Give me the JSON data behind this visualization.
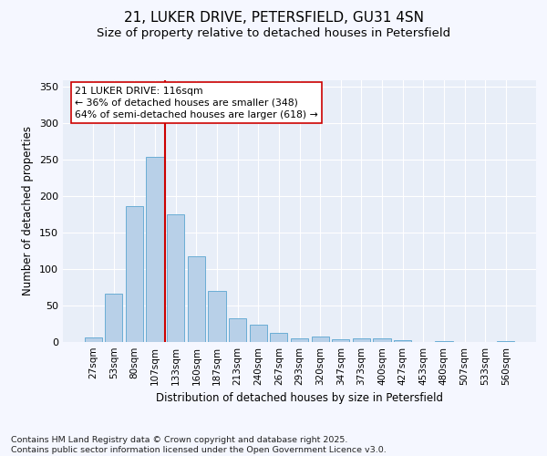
{
  "title_line1": "21, LUKER DRIVE, PETERSFIELD, GU31 4SN",
  "title_line2": "Size of property relative to detached houses in Petersfield",
  "xlabel": "Distribution of detached houses by size in Petersfield",
  "ylabel": "Number of detached properties",
  "categories": [
    "27sqm",
    "53sqm",
    "80sqm",
    "107sqm",
    "133sqm",
    "160sqm",
    "187sqm",
    "213sqm",
    "240sqm",
    "267sqm",
    "293sqm",
    "320sqm",
    "347sqm",
    "373sqm",
    "400sqm",
    "427sqm",
    "453sqm",
    "480sqm",
    "507sqm",
    "533sqm",
    "560sqm"
  ],
  "values": [
    6,
    66,
    186,
    254,
    175,
    118,
    70,
    33,
    24,
    13,
    5,
    8,
    4,
    5,
    5,
    3,
    0,
    1,
    0,
    0,
    1
  ],
  "bar_color": "#b8d0e8",
  "bar_edge_color": "#6aadd5",
  "background_color": "#e8eef8",
  "grid_color": "#ffffff",
  "annotation_text_line1": "21 LUKER DRIVE: 116sqm",
  "annotation_text_line2": "← 36% of detached houses are smaller (348)",
  "annotation_text_line3": "64% of semi-detached houses are larger (618) →",
  "annotation_box_color": "#ffffff",
  "annotation_box_edge_color": "#cc0000",
  "vline_color": "#cc0000",
  "vline_x": 3.5,
  "ylim": [
    0,
    360
  ],
  "yticks": [
    0,
    50,
    100,
    150,
    200,
    250,
    300,
    350
  ],
  "footnote": "Contains HM Land Registry data © Crown copyright and database right 2025.\nContains public sector information licensed under the Open Government Licence v3.0.",
  "fig_bg": "#f5f7ff"
}
